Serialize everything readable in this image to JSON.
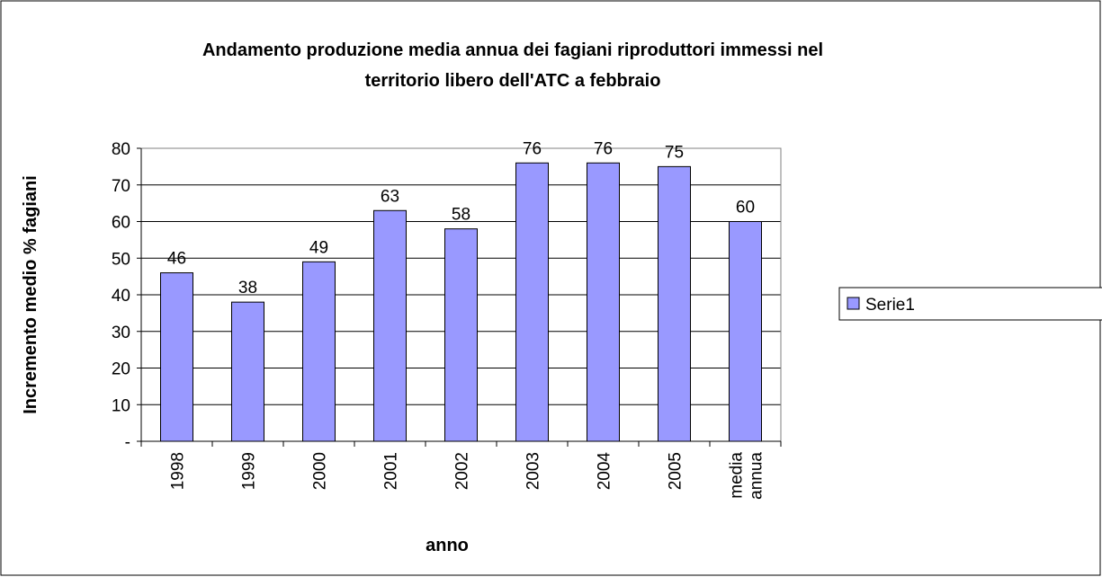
{
  "chart_data": {
    "type": "bar",
    "title": [
      "Andamento produzione media annua dei fagiani riproduttori immessi nel",
      "territorio libero dell'ATC a febbraio"
    ],
    "x_label": "anno",
    "y_label": "Incremento medio % fagiani",
    "categories": [
      "1998",
      "1999",
      "2000",
      "2001",
      "2002",
      "2003",
      "2004",
      "2005",
      "media annua"
    ],
    "series": [
      {
        "name": "Serie1",
        "color": "#9999ff",
        "values": [
          46,
          38,
          49,
          63,
          58,
          76,
          76,
          75,
          60
        ]
      }
    ],
    "ylim": [
      0,
      80
    ],
    "yticks": [
      {
        "value": 0,
        "label": "-"
      },
      10,
      20,
      30,
      40,
      50,
      60,
      70,
      80
    ],
    "grid": true,
    "legend": "right"
  }
}
